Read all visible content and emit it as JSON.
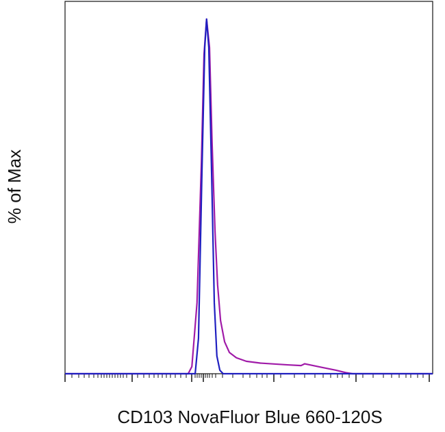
{
  "chart_data": {
    "type": "line",
    "y_label": "% of Max",
    "x_label": "CD103 NovaFluor Blue 660-120S",
    "xlim": [
      0,
      1000
    ],
    "ylim": [
      0,
      105
    ],
    "series": [
      {
        "color": "#a01aa8",
        "x": [
          0,
          335,
          345,
          359,
          371,
          378,
          385,
          393,
          400,
          408,
          415,
          423,
          434,
          447,
          466,
          493,
          531,
          605,
          642,
          652,
          670,
          698,
          736,
          764,
          782,
          1000
        ],
        "values": [
          0,
          0,
          2,
          20,
          60,
          90,
          100,
          92,
          65,
          40,
          25,
          15,
          9,
          6,
          4.5,
          3.5,
          3,
          2.5,
          2.3,
          2.8,
          2.4,
          1.8,
          1,
          0.3,
          0,
          0
        ]
      },
      {
        "color": "#1f1fc0",
        "x": [
          0,
          354,
          363,
          372,
          380,
          385,
          391,
          399,
          406,
          413,
          421,
          430,
          1000
        ],
        "values": [
          0,
          0,
          10,
          55,
          92,
          100,
          92,
          55,
          20,
          5,
          1,
          0,
          0
        ]
      }
    ]
  }
}
